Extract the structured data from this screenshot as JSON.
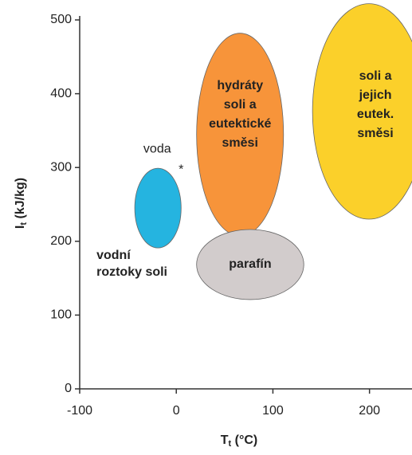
{
  "chart_data": {
    "type": "region",
    "xlabel_parts": [
      "T",
      "t",
      " (°C)"
    ],
    "ylabel_parts": [
      "I",
      "t",
      " (kJ/kg)"
    ],
    "xlim": [
      -100,
      244
    ],
    "ylim": [
      0,
      500
    ],
    "xticks": [
      -100,
      0,
      100,
      200
    ],
    "yticks": [
      0,
      100,
      200,
      300,
      400,
      500
    ],
    "regions": [
      {
        "label_lines": [
          "vodní",
          "roztoky soli"
        ],
        "color": "#25b4e0",
        "label_color": "#2ab0e0",
        "x": [
          -43,
          5
        ],
        "y": [
          191,
          299
        ]
      },
      {
        "label_lines": [
          "hydráty",
          "soli a",
          "eutektické",
          "směsi"
        ],
        "color": "#f7943a",
        "label_color": "#3a2414",
        "x": [
          21,
          111
        ],
        "y": [
          207,
          482
        ]
      },
      {
        "label_lines": [
          "parafín"
        ],
        "color": "#d2cccc",
        "label_color": "#222222",
        "x": [
          21,
          132
        ],
        "y": [
          121,
          216
        ]
      },
      {
        "label_lines": [
          "soli a",
          "jejich",
          "eutek.",
          "směsi"
        ],
        "color": "#fbd02a",
        "label_color": "#3a2a10",
        "x": [
          141,
          258
        ],
        "y": [
          230,
          522
        ]
      }
    ],
    "points": [
      {
        "label": "voda",
        "x": 5,
        "y": 300,
        "color": "#3a4a8a"
      }
    ]
  }
}
